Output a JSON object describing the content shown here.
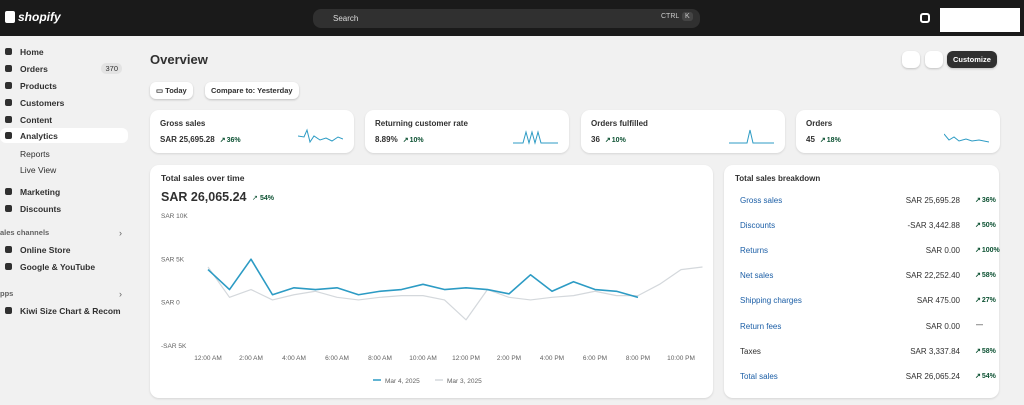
{
  "topbar": {
    "logo": "shopify",
    "search": "Search",
    "shortcut_1": "CTRL",
    "shortcut_2": "K"
  },
  "sidebar": {
    "nav": [
      "Home",
      "Orders",
      "Products",
      "Customers",
      "Content",
      "Analytics",
      "Reports",
      "Live View",
      "Marketing",
      "Discounts"
    ],
    "orders_badge": 370,
    "sales_channels": {
      "heading": "ales channels",
      "items": [
        "Online Store",
        "Google & YouTube"
      ]
    },
    "apps": {
      "heading": "pps",
      "items": [
        "Kiwi Size Chart & Recom"
      ]
    }
  },
  "header": {
    "title": "Overview",
    "date_button": "Today",
    "compare_button": "Compare to: Yesterday",
    "customize": "Customize"
  },
  "metrics": [
    {
      "title": "Gross sales",
      "value": "SAR 25,695.28",
      "change": "36%"
    },
    {
      "title": "Returning customer rate",
      "value": "8.89%",
      "change": "10%"
    },
    {
      "title": "Orders fulfilled",
      "value": "36",
      "change": "10%"
    },
    {
      "title": "Orders",
      "value": "45",
      "change": "18%"
    }
  ],
  "sales_chart": {
    "type": "line",
    "title": "Total sales over time",
    "total": "SAR 26,065.24",
    "change": "54%",
    "ylim": [
      -5000,
      10000
    ],
    "yticks": [
      {
        "value": 10000,
        "label": "SAR 10K"
      },
      {
        "value": 5000,
        "label": "SAR 5K"
      },
      {
        "value": 0,
        "label": "SAR 0"
      },
      {
        "value": -5000,
        "label": "-SAR 5K"
      }
    ],
    "categories": [
      "12:00 AM",
      null,
      "2:00 AM",
      null,
      "4:00 AM",
      null,
      "6:00 AM",
      null,
      "8:00 AM",
      null,
      "10:00 AM",
      null,
      "12:00 PM",
      null,
      "2:00 PM",
      null,
      "4:00 PM",
      null,
      "6:00 PM",
      null,
      "8:00 PM",
      null,
      "10:00 PM",
      null
    ],
    "series": [
      {
        "name": "Mar 4, 2025",
        "color": "#2c9bc4",
        "values": [
          3700,
          1400,
          4900,
          800,
          1600,
          1400,
          1600,
          800,
          1200,
          1400,
          2000,
          1400,
          1600,
          1400,
          900,
          3100,
          1200,
          2300,
          1400,
          1200,
          500,
          null,
          null,
          null
        ]
      },
      {
        "name": "Mar 3, 2025",
        "color": "#d4d8dc",
        "values": [
          4000,
          500,
          1400,
          200,
          800,
          1200,
          500,
          200,
          500,
          700,
          700,
          200,
          -2100,
          1400,
          500,
          200,
          500,
          700,
          1200,
          700,
          700,
          2000,
          3700,
          4000
        ]
      }
    ]
  },
  "breakdown": {
    "title": "Total sales breakdown",
    "rows": [
      {
        "label": "Gross sales",
        "value": "SAR 25,695.28",
        "change": "36%"
      },
      {
        "label": "Discounts",
        "value": "-SAR 3,442.88",
        "change": "50%"
      },
      {
        "label": "Returns",
        "value": "SAR 0.00",
        "change": "100%"
      },
      {
        "label": "Net sales",
        "value": "SAR 22,252.40",
        "change": "58%"
      },
      {
        "label": "Shipping charges",
        "value": "SAR 475.00",
        "change": "27%"
      },
      {
        "label": "Return fees",
        "value": "SAR 0.00",
        "change": "—"
      },
      {
        "label": "Taxes",
        "value": "SAR 3,337.84",
        "change": "58%"
      },
      {
        "label": "Total sales",
        "value": "SAR 26,065.24",
        "change": "54%"
      }
    ]
  }
}
